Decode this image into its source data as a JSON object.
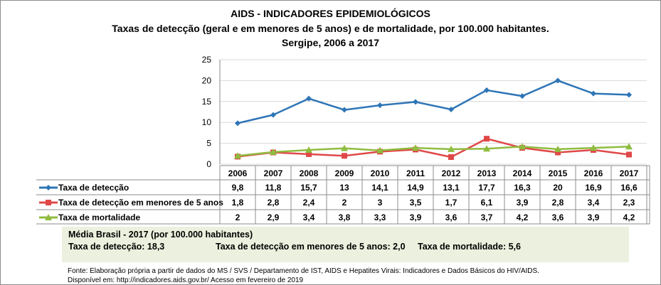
{
  "chart_data": {
    "type": "line",
    "title": "AIDS - INDICADORES EPIDEMIOLÓGICOS",
    "subtitle": "Taxas de detecção (geral e em menores de 5 anos) e de mortalidade, por 100.000 habitantes.",
    "subtitle2": "Sergipe, 2006 a 2017",
    "categories": [
      "2006",
      "2007",
      "2008",
      "2009",
      "2010",
      "2011",
      "2012",
      "2013",
      "2014",
      "2015",
      "2016",
      "2017"
    ],
    "ylim": [
      0,
      25
    ],
    "yticks": [
      0,
      5,
      10,
      15,
      20,
      25
    ],
    "grid": true,
    "legend": "data-table",
    "series": [
      {
        "name": "Taxa de detecção",
        "color": "#2e75b6",
        "marker": "diamond",
        "values": [
          9.8,
          11.8,
          15.7,
          13,
          14.1,
          14.9,
          13.1,
          17.7,
          16.3,
          20,
          16.9,
          16.6
        ],
        "labels": [
          "9,8",
          "11,8",
          "15,7",
          "13",
          "14,1",
          "14,9",
          "13,1",
          "17,7",
          "16,3",
          "20",
          "16,9",
          "16,6"
        ]
      },
      {
        "name": "Taxa de detecção em menores de 5 anos",
        "color": "#e04848",
        "marker": "square",
        "values": [
          1.8,
          2.8,
          2.4,
          2,
          3,
          3.5,
          1.7,
          6.1,
          3.9,
          2.8,
          3.4,
          2.3
        ],
        "labels": [
          "1,8",
          "2,8",
          "2,4",
          "2",
          "3",
          "3,5",
          "1,7",
          "6,1",
          "3,9",
          "2,8",
          "3,4",
          "2,3"
        ]
      },
      {
        "name": "Taxa de mortalidade",
        "color": "#8fbc3f",
        "marker": "triangle",
        "values": [
          2,
          2.9,
          3.4,
          3.8,
          3.3,
          3.9,
          3.6,
          3.7,
          4.2,
          3.6,
          3.9,
          4.2
        ],
        "labels": [
          "2",
          "2,9",
          "3,4",
          "3,8",
          "3,3",
          "3,9",
          "3,6",
          "3,7",
          "4,2",
          "3,6",
          "3,9",
          "4,2"
        ]
      }
    ]
  },
  "note": {
    "heading": "Média Brasil - 2017 (por 100.000 habitantes)",
    "items": [
      "Taxa de detecção: 18,3",
      "Taxa de detecção em menores de 5 anos: 2,0",
      "Taxa de mortalidade: 5,6"
    ]
  },
  "source": {
    "line1": "Fonte: Elaboração própria a partir de dados do MS / SVS / Departamento de IST, AIDS e Hepatites Virais: Indicadores e Dados Básicos do HIV/AIDS.",
    "line2": "Disponível em: http://indicadores.aids.gov.br/   Acesso em fevereiro de 2019"
  }
}
